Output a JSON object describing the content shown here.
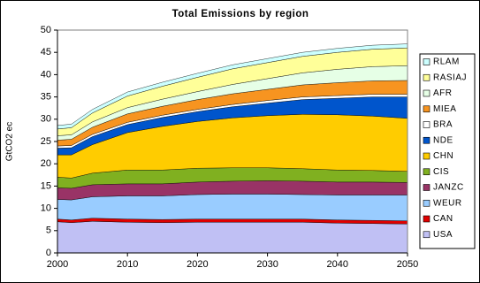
{
  "chart_data": {
    "type": "stacked_area",
    "title": "Total Emissions by region",
    "y_label": "GtCO2 ec",
    "x": [
      2000,
      2002,
      2005,
      2010,
      2015,
      2020,
      2025,
      2030,
      2035,
      2040,
      2045,
      2050
    ],
    "xlim": [
      2000,
      2050
    ],
    "xticks": [
      2000,
      2010,
      2020,
      2030,
      2040,
      2050
    ],
    "ylim": [
      0,
      50
    ],
    "yticks": [
      0,
      5,
      10,
      15,
      20,
      25,
      30,
      35,
      40,
      45,
      50
    ],
    "grid": false,
    "legend": "right",
    "series": [
      {
        "name": "USA",
        "color": "#c0c0f4",
        "values": [
          7.0,
          6.8,
          7.1,
          6.9,
          6.8,
          6.9,
          6.9,
          6.9,
          6.9,
          6.7,
          6.6,
          6.5
        ]
      },
      {
        "name": "CAN",
        "color": "#e00000",
        "values": [
          0.6,
          0.6,
          0.7,
          0.7,
          0.7,
          0.7,
          0.7,
          0.7,
          0.7,
          0.7,
          0.7,
          0.7
        ]
      },
      {
        "name": "WEUR",
        "color": "#99ccff",
        "values": [
          4.4,
          4.5,
          4.8,
          5.2,
          5.3,
          5.5,
          5.6,
          5.6,
          5.5,
          5.6,
          5.7,
          5.8
        ]
      },
      {
        "name": "JANZC",
        "color": "#993366",
        "values": [
          2.6,
          2.6,
          2.7,
          2.7,
          2.7,
          2.8,
          2.9,
          3.0,
          3.0,
          2.9,
          2.9,
          2.8
        ]
      },
      {
        "name": "CIS",
        "color": "#80b020",
        "values": [
          2.4,
          2.3,
          2.6,
          3.1,
          3.1,
          3.1,
          3.0,
          2.9,
          2.8,
          2.7,
          2.6,
          2.5
        ]
      },
      {
        "name": "CHN",
        "color": "#ffcc00",
        "values": [
          5.0,
          5.2,
          6.4,
          8.4,
          9.8,
          10.5,
          11.2,
          11.7,
          12.2,
          12.4,
          12.2,
          11.9
        ]
      },
      {
        "name": "NDE",
        "color": "#0055cc",
        "values": [
          1.5,
          1.6,
          1.8,
          1.8,
          2.0,
          2.2,
          2.5,
          2.8,
          3.3,
          3.7,
          4.3,
          4.8
        ]
      },
      {
        "name": "BRA",
        "color": "#ffffff",
        "values": [
          0.5,
          0.5,
          0.5,
          0.5,
          0.5,
          0.5,
          0.5,
          0.6,
          0.6,
          0.6,
          0.6,
          0.6
        ]
      },
      {
        "name": "MIEA",
        "color": "#f79420",
        "values": [
          1.3,
          1.4,
          1.6,
          1.9,
          2.0,
          2.2,
          2.4,
          2.5,
          2.7,
          2.9,
          3.0,
          3.1
        ]
      },
      {
        "name": "AFR",
        "color": "#e6ffe6",
        "values": [
          1.0,
          1.0,
          1.2,
          1.4,
          1.6,
          1.8,
          2.1,
          2.4,
          2.7,
          3.0,
          3.2,
          3.3
        ]
      },
      {
        "name": "RASIAJ",
        "color": "#ffff99",
        "values": [
          1.5,
          1.6,
          2.0,
          2.6,
          2.9,
          3.2,
          3.5,
          3.6,
          3.7,
          3.8,
          3.9,
          4.0
        ]
      },
      {
        "name": "RLAM",
        "color": "#ccffff",
        "values": [
          0.8,
          0.8,
          0.8,
          0.9,
          0.9,
          0.9,
          0.9,
          0.9,
          0.9,
          0.9,
          0.9,
          0.9
        ]
      }
    ]
  }
}
